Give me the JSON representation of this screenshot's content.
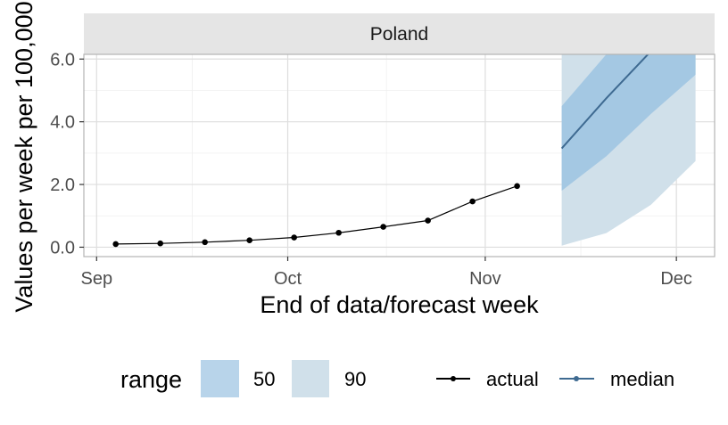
{
  "chart_data": {
    "type": "line",
    "facet": "Poland",
    "xlabel": "End of data/forecast week",
    "ylabel": "Values per week per 100,000",
    "x_ticks": [
      "Sep",
      "Oct",
      "Nov",
      "Dec"
    ],
    "x_tick_dates": [
      "2020-09-01",
      "2020-10-01",
      "2020-11-01",
      "2020-12-01"
    ],
    "xlim": [
      "2020-08-30",
      "2020-12-07"
    ],
    "y_ticks": [
      "0.0",
      "2.0",
      "4.0",
      "6.0"
    ],
    "y_tick_values": [
      0,
      2,
      4,
      6
    ],
    "ylim": [
      -0.3,
      6.15
    ],
    "grid": true,
    "legend_position": "bottom",
    "series": [
      {
        "name": "actual",
        "color": "#000000",
        "x": [
          "2020-09-04",
          "2020-09-11",
          "2020-09-18",
          "2020-09-25",
          "2020-10-02",
          "2020-10-09",
          "2020-10-16",
          "2020-10-23",
          "2020-10-30",
          "2020-11-06"
        ],
        "y": [
          0.1,
          0.12,
          0.16,
          0.22,
          0.31,
          0.46,
          0.65,
          0.85,
          1.46,
          1.95
        ]
      },
      {
        "name": "median",
        "color": "#3e6a91",
        "x": [
          "2020-11-13",
          "2020-11-20",
          "2020-11-27"
        ],
        "y": [
          3.15,
          4.75,
          6.25
        ]
      }
    ],
    "ranges": [
      {
        "name": "90",
        "color": "#d0e0ea",
        "x": [
          "2020-11-13",
          "2020-11-20",
          "2020-11-27",
          "2020-12-04"
        ],
        "lower": [
          0.05,
          0.45,
          1.35,
          2.75
        ],
        "upper": [
          6.5,
          7.0,
          7.5,
          8.0
        ]
      },
      {
        "name": "50",
        "color": "#a4c8e3",
        "x": [
          "2020-11-13",
          "2020-11-20",
          "2020-11-27",
          "2020-12-04"
        ],
        "lower": [
          1.8,
          2.9,
          4.25,
          5.5
        ],
        "upper": [
          4.5,
          6.2,
          6.8,
          7.3
        ]
      }
    ],
    "legend": {
      "range_title": "range",
      "range_items": [
        {
          "label": "50",
          "color": "#b8d4ea"
        },
        {
          "label": "90",
          "color": "#d0e0ea"
        }
      ],
      "line_items": [
        {
          "label": "actual",
          "color": "#000000"
        },
        {
          "label": "median",
          "color": "#3e6a91"
        }
      ]
    }
  }
}
